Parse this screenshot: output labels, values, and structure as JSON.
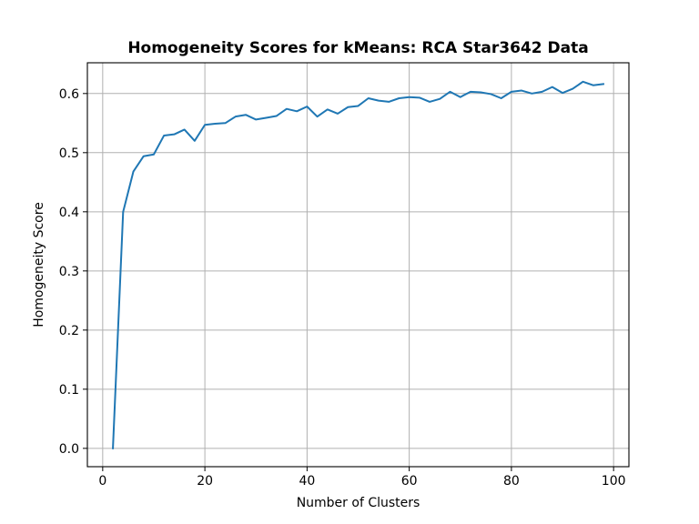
{
  "chart_data": {
    "type": "line",
    "title": "Homogeneity Scores for kMeans: RCA Star3642 Data",
    "xlabel": "Number of Clusters",
    "ylabel": "Homogeneity Score",
    "xlim": [
      -3,
      103
    ],
    "ylim": [
      -0.031,
      0.652
    ],
    "xticks": [
      0,
      20,
      40,
      60,
      80,
      100
    ],
    "yticks": [
      0.0,
      0.1,
      0.2,
      0.3,
      0.4,
      0.5,
      0.6
    ],
    "xtick_labels": [
      "0",
      "20",
      "40",
      "60",
      "80",
      "100"
    ],
    "ytick_labels": [
      "0.0",
      "0.1",
      "0.2",
      "0.3",
      "0.4",
      "0.5",
      "0.6"
    ],
    "grid": true,
    "series": [
      {
        "color": "#1f77b4",
        "x": [
          2,
          4,
          6,
          8,
          10,
          12,
          14,
          16,
          18,
          20,
          22,
          24,
          26,
          28,
          30,
          32,
          34,
          36,
          38,
          40,
          42,
          44,
          46,
          48,
          50,
          52,
          54,
          56,
          58,
          60,
          62,
          64,
          66,
          68,
          70,
          72,
          74,
          76,
          78,
          80,
          82,
          84,
          86,
          88,
          90,
          92,
          94,
          96,
          98
        ],
        "y": [
          0.0,
          0.4,
          0.468,
          0.494,
          0.497,
          0.529,
          0.531,
          0.539,
          0.52,
          0.547,
          0.549,
          0.55,
          0.561,
          0.564,
          0.556,
          0.559,
          0.562,
          0.574,
          0.57,
          0.578,
          0.561,
          0.573,
          0.566,
          0.577,
          0.579,
          0.592,
          0.588,
          0.586,
          0.592,
          0.594,
          0.593,
          0.586,
          0.591,
          0.603,
          0.594,
          0.603,
          0.602,
          0.599,
          0.592,
          0.603,
          0.605,
          0.6,
          0.603,
          0.611,
          0.601,
          0.608,
          0.62,
          0.614,
          0.616
        ]
      }
    ]
  }
}
